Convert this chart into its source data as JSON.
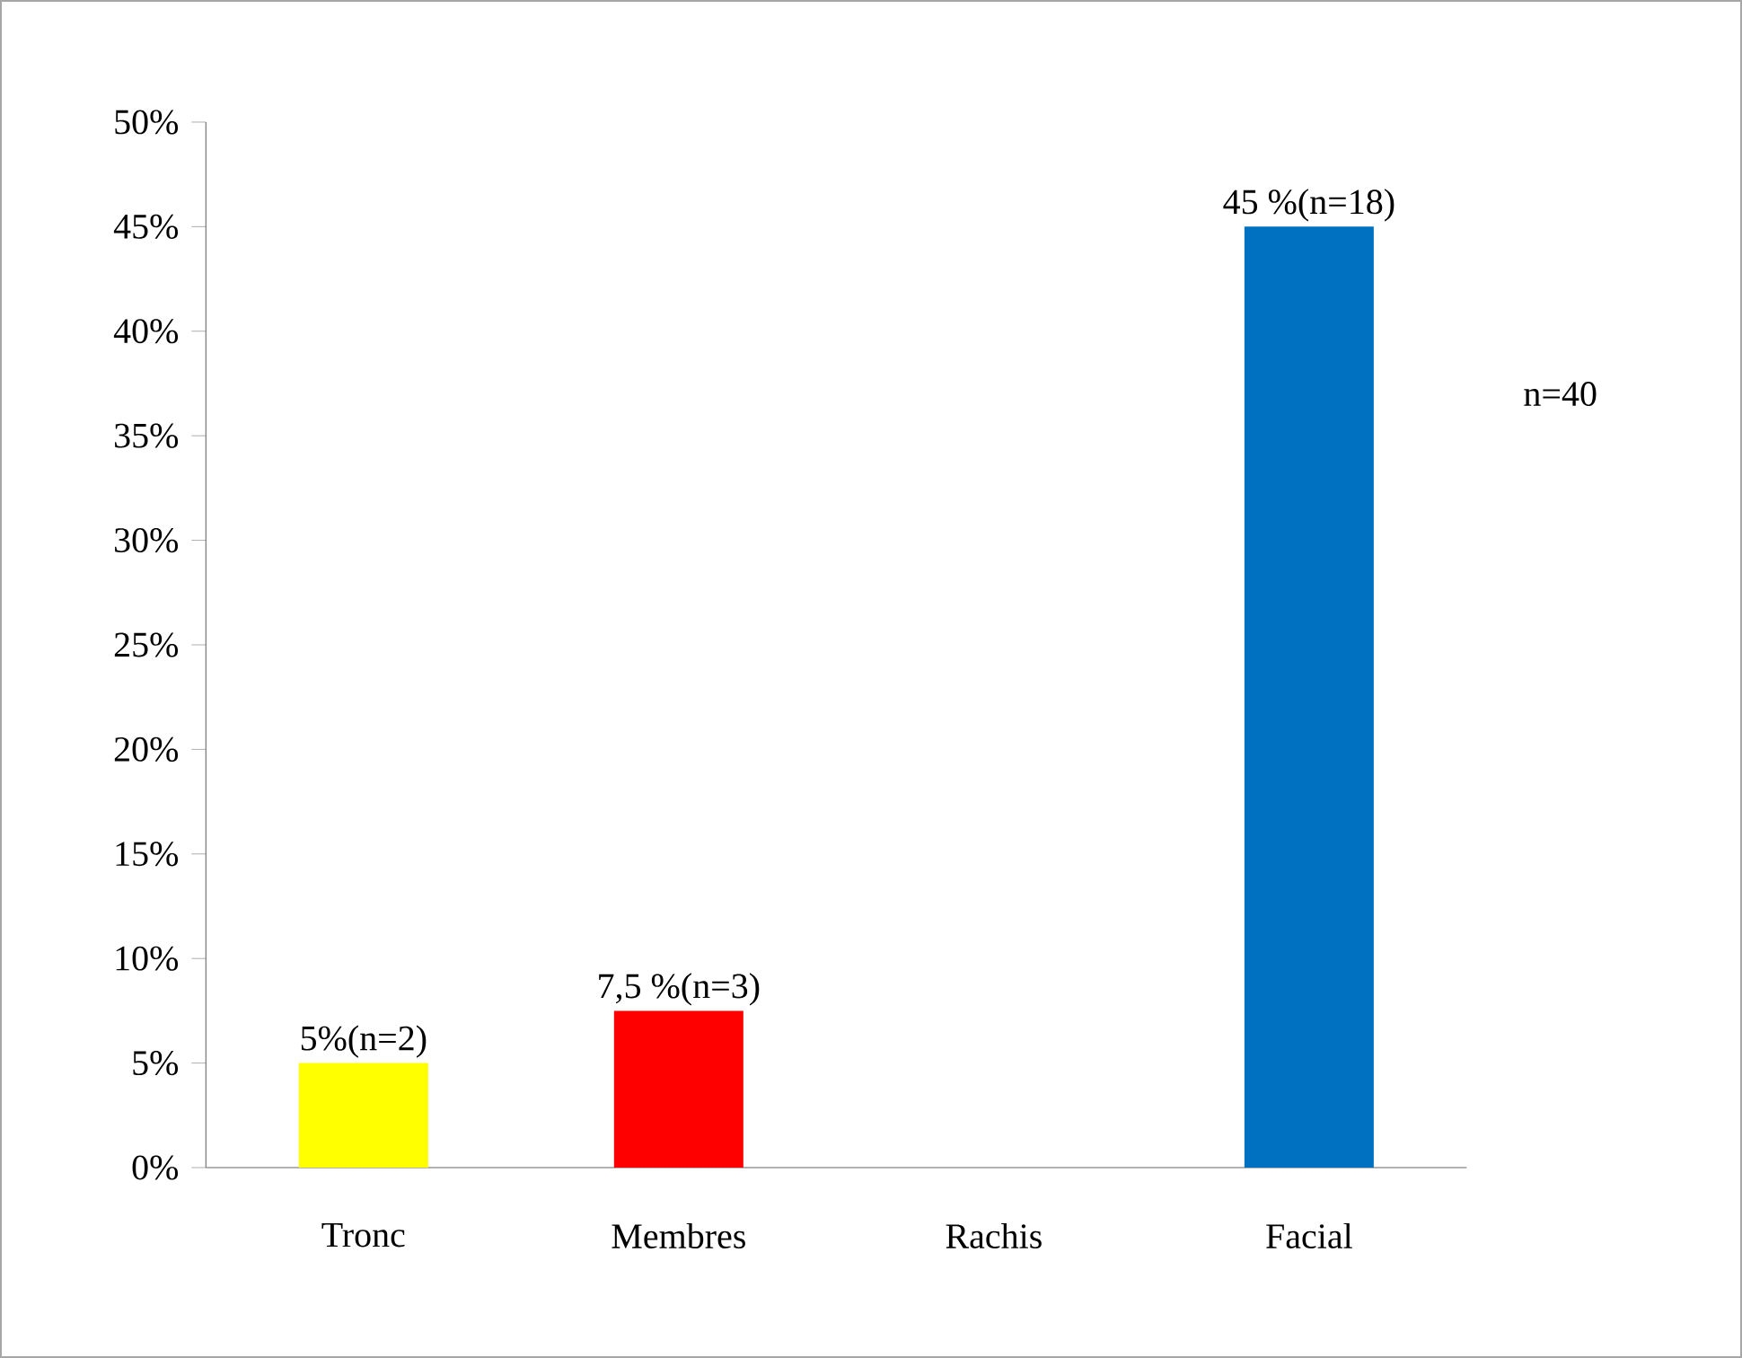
{
  "chart_data": {
    "type": "bar",
    "categories": [
      "Tronc",
      "Membres",
      "Rachis",
      "Facial"
    ],
    "values": [
      5,
      7.5,
      0,
      45
    ],
    "colors": [
      "#ffff00",
      "#ff0000",
      "#ff0000",
      "#0070c0"
    ],
    "value_labels": [
      "5%(n=2)",
      "7,5 %(n=3)",
      null,
      "45 %(n=18)"
    ],
    "ylim": [
      0,
      50
    ],
    "yticks": [
      {
        "value": 0,
        "label": "0%"
      },
      {
        "value": 5,
        "label": "5%"
      },
      {
        "value": 10,
        "label": "10%"
      },
      {
        "value": 15,
        "label": "15%"
      },
      {
        "value": 20,
        "label": "20%"
      },
      {
        "value": 25,
        "label": "25%"
      },
      {
        "value": 30,
        "label": "30%"
      },
      {
        "value": 35,
        "label": "35%"
      },
      {
        "value": 40,
        "label": "40%"
      },
      {
        "value": 45,
        "label": "45%"
      },
      {
        "value": 50,
        "label": "50%"
      }
    ],
    "annotations": [
      "n=40"
    ]
  }
}
